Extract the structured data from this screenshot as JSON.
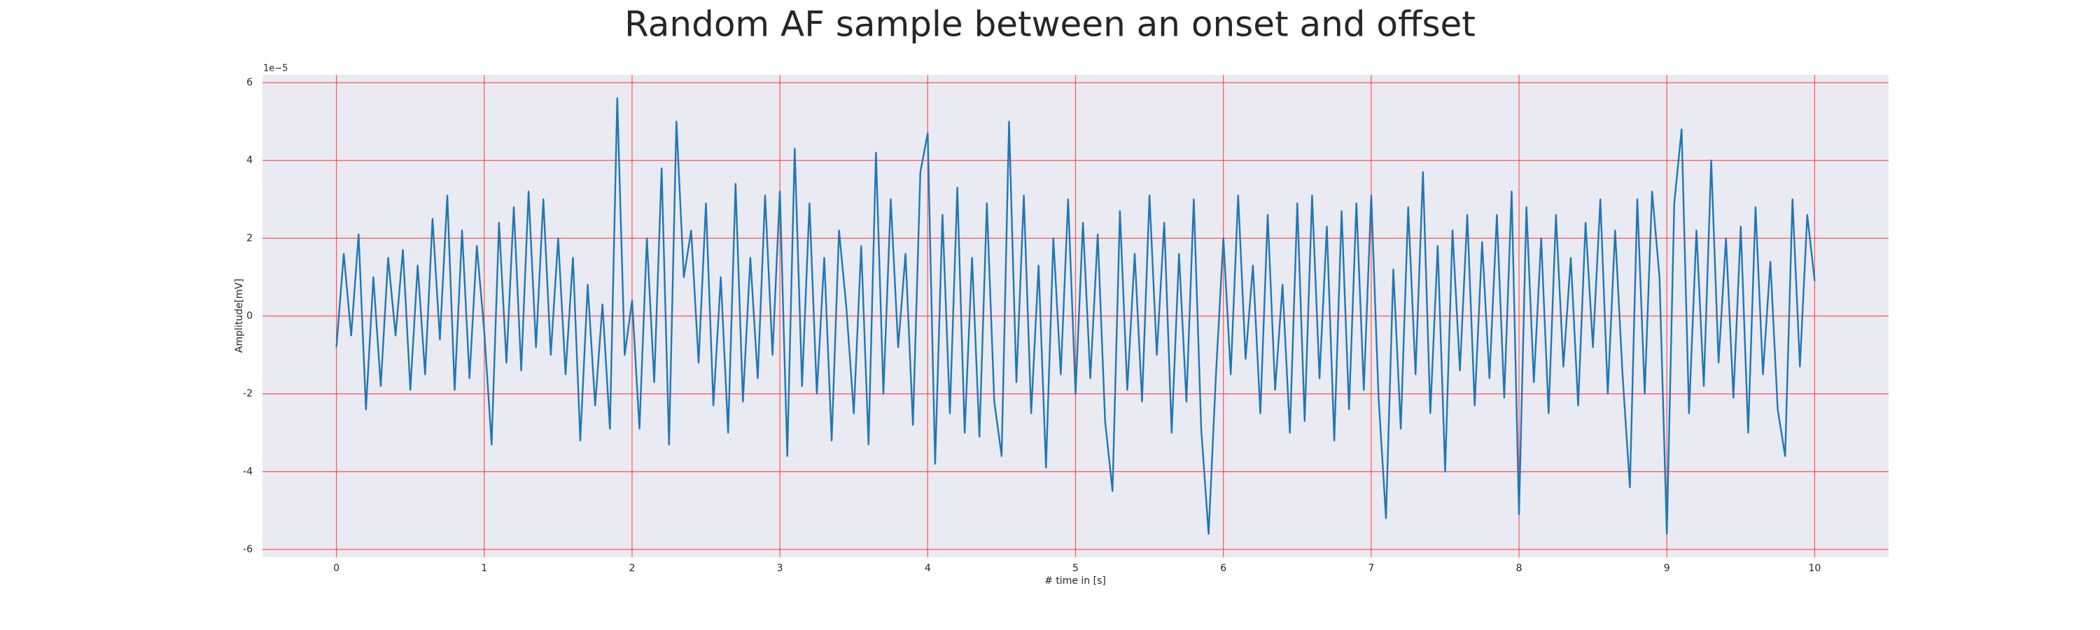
{
  "chart_data": {
    "type": "line",
    "title": "Random AF sample between an onset and offset",
    "xlabel": "# time in [s]",
    "ylabel": "Amplitude[mV]",
    "y_offset_label": "1e−5",
    "x": [
      0,
      0.05,
      0.1,
      0.15,
      0.2,
      0.25,
      0.3,
      0.35,
      0.4,
      0.45,
      0.5,
      0.55,
      0.6,
      0.65,
      0.7,
      0.75,
      0.8,
      0.85,
      0.9,
      0.95,
      1,
      1.05,
      1.1,
      1.15,
      1.2,
      1.25,
      1.3,
      1.35,
      1.4,
      1.45,
      1.5,
      1.55,
      1.6,
      1.65,
      1.7,
      1.75,
      1.8,
      1.85,
      1.9,
      1.95,
      2,
      2.05,
      2.1,
      2.15,
      2.2,
      2.25,
      2.3,
      2.35,
      2.4,
      2.45,
      2.5,
      2.55,
      2.6,
      2.65,
      2.7,
      2.75,
      2.8,
      2.85,
      2.9,
      2.95,
      3,
      3.05,
      3.1,
      3.15,
      3.2,
      3.25,
      3.3,
      3.35,
      3.4,
      3.45,
      3.5,
      3.55,
      3.6,
      3.65,
      3.7,
      3.75,
      3.8,
      3.85,
      3.9,
      3.95,
      4,
      4.05,
      4.1,
      4.15,
      4.2,
      4.25,
      4.3,
      4.35,
      4.4,
      4.45,
      4.5,
      4.55,
      4.6,
      4.65,
      4.7,
      4.75,
      4.8,
      4.85,
      4.9,
      4.95,
      5,
      5.05,
      5.1,
      5.15,
      5.2,
      5.25,
      5.3,
      5.35,
      5.4,
      5.45,
      5.5,
      5.55,
      5.6,
      5.65,
      5.7,
      5.75,
      5.8,
      5.85,
      5.9,
      5.95,
      6,
      6.05,
      6.1,
      6.15,
      6.2,
      6.25,
      6.3,
      6.35,
      6.4,
      6.45,
      6.5,
      6.55,
      6.6,
      6.65,
      6.7,
      6.75,
      6.8,
      6.85,
      6.9,
      6.95,
      7,
      7.05,
      7.1,
      7.15,
      7.2,
      7.25,
      7.3,
      7.35,
      7.4,
      7.45,
      7.5,
      7.55,
      7.6,
      7.65,
      7.7,
      7.75,
      7.8,
      7.85,
      7.9,
      7.95,
      8,
      8.05,
      8.1,
      8.15,
      8.2,
      8.25,
      8.3,
      8.35,
      8.4,
      8.45,
      8.5,
      8.55,
      8.6,
      8.65,
      8.7,
      8.75,
      8.8,
      8.85,
      8.9,
      8.95,
      9,
      9.05,
      9.1,
      9.15,
      9.2,
      9.25,
      9.3,
      9.35,
      9.4,
      9.45,
      9.5,
      9.55,
      9.6,
      9.65,
      9.7,
      9.75,
      9.8,
      9.85,
      9.9,
      9.95,
      10
    ],
    "series": [
      {
        "color": "#1f77b4",
        "values": [
          -0.8,
          1.6,
          -0.5,
          2.1,
          -2.4,
          1.0,
          -1.8,
          1.5,
          -0.5,
          1.7,
          -1.9,
          1.3,
          -1.5,
          2.5,
          -0.6,
          3.1,
          -1.9,
          2.2,
          -1.6,
          1.8,
          -0.4,
          -3.3,
          2.4,
          -1.2,
          2.8,
          -1.4,
          3.2,
          -0.8,
          3.0,
          -1.0,
          2.0,
          -1.5,
          1.5,
          -3.2,
          0.8,
          -2.3,
          0.3,
          -2.9,
          5.6,
          -1.0,
          0.4,
          -2.9,
          2.0,
          -1.7,
          3.8,
          -3.3,
          5.0,
          1.0,
          2.2,
          -1.2,
          2.9,
          -2.3,
          1.0,
          -3.0,
          3.4,
          -2.2,
          1.5,
          -1.6,
          3.1,
          -1.0,
          3.2,
          -3.6,
          4.3,
          -1.8,
          2.9,
          -2.0,
          1.5,
          -3.2,
          2.2,
          0.2,
          -2.5,
          1.8,
          -3.3,
          4.2,
          -2.0,
          3.0,
          -0.8,
          1.6,
          -2.8,
          3.7,
          4.7,
          -3.8,
          2.6,
          -2.5,
          3.3,
          -3.0,
          1.5,
          -3.1,
          2.9,
          -2.2,
          -3.6,
          5.0,
          -1.7,
          3.1,
          -2.5,
          1.3,
          -3.9,
          2.0,
          -1.5,
          3.0,
          -2.0,
          2.4,
          -1.6,
          2.1,
          -2.7,
          -4.5,
          2.7,
          -1.9,
          1.6,
          -2.2,
          3.1,
          -1.0,
          2.4,
          -3.0,
          1.6,
          -2.2,
          3.0,
          -2.9,
          -5.6,
          -1.5,
          2.0,
          -1.5,
          3.1,
          -1.1,
          1.3,
          -2.5,
          2.6,
          -1.9,
          0.8,
          -3.0,
          2.9,
          -2.7,
          3.1,
          -1.6,
          2.3,
          -3.2,
          2.7,
          -2.4,
          2.9,
          -1.9,
          3.1,
          -2.1,
          -5.2,
          1.2,
          -2.9,
          2.8,
          -1.5,
          3.7,
          -2.5,
          1.8,
          -4.0,
          2.2,
          -1.4,
          2.6,
          -2.3,
          1.9,
          -1.6,
          2.6,
          -2.1,
          3.2,
          -5.1,
          2.8,
          -1.7,
          2.0,
          -2.5,
          2.6,
          -1.3,
          1.5,
          -2.3,
          2.4,
          -0.8,
          3.0,
          -2.0,
          2.2,
          -1.5,
          -4.4,
          3.0,
          -2.0,
          3.2,
          1.0,
          -5.6,
          2.9,
          4.8,
          -2.5,
          2.2,
          -1.8,
          4.0,
          -1.2,
          2.0,
          -2.1,
          2.3,
          -3.0,
          2.8,
          -1.5,
          1.4,
          -2.4,
          -3.6,
          3.0,
          -1.3,
          2.6,
          0.9
        ]
      }
    ],
    "xlim": [
      -0.5,
      10.5
    ],
    "ylim": [
      -6.2,
      6.2
    ],
    "xticks": [
      0,
      1,
      2,
      3,
      4,
      5,
      6,
      7,
      8,
      9,
      10
    ],
    "yticks": [
      -6,
      -4,
      -2,
      0,
      2,
      4,
      6
    ],
    "grid": true,
    "grid_color": "#ff3030",
    "background": "#eaeaf2"
  }
}
